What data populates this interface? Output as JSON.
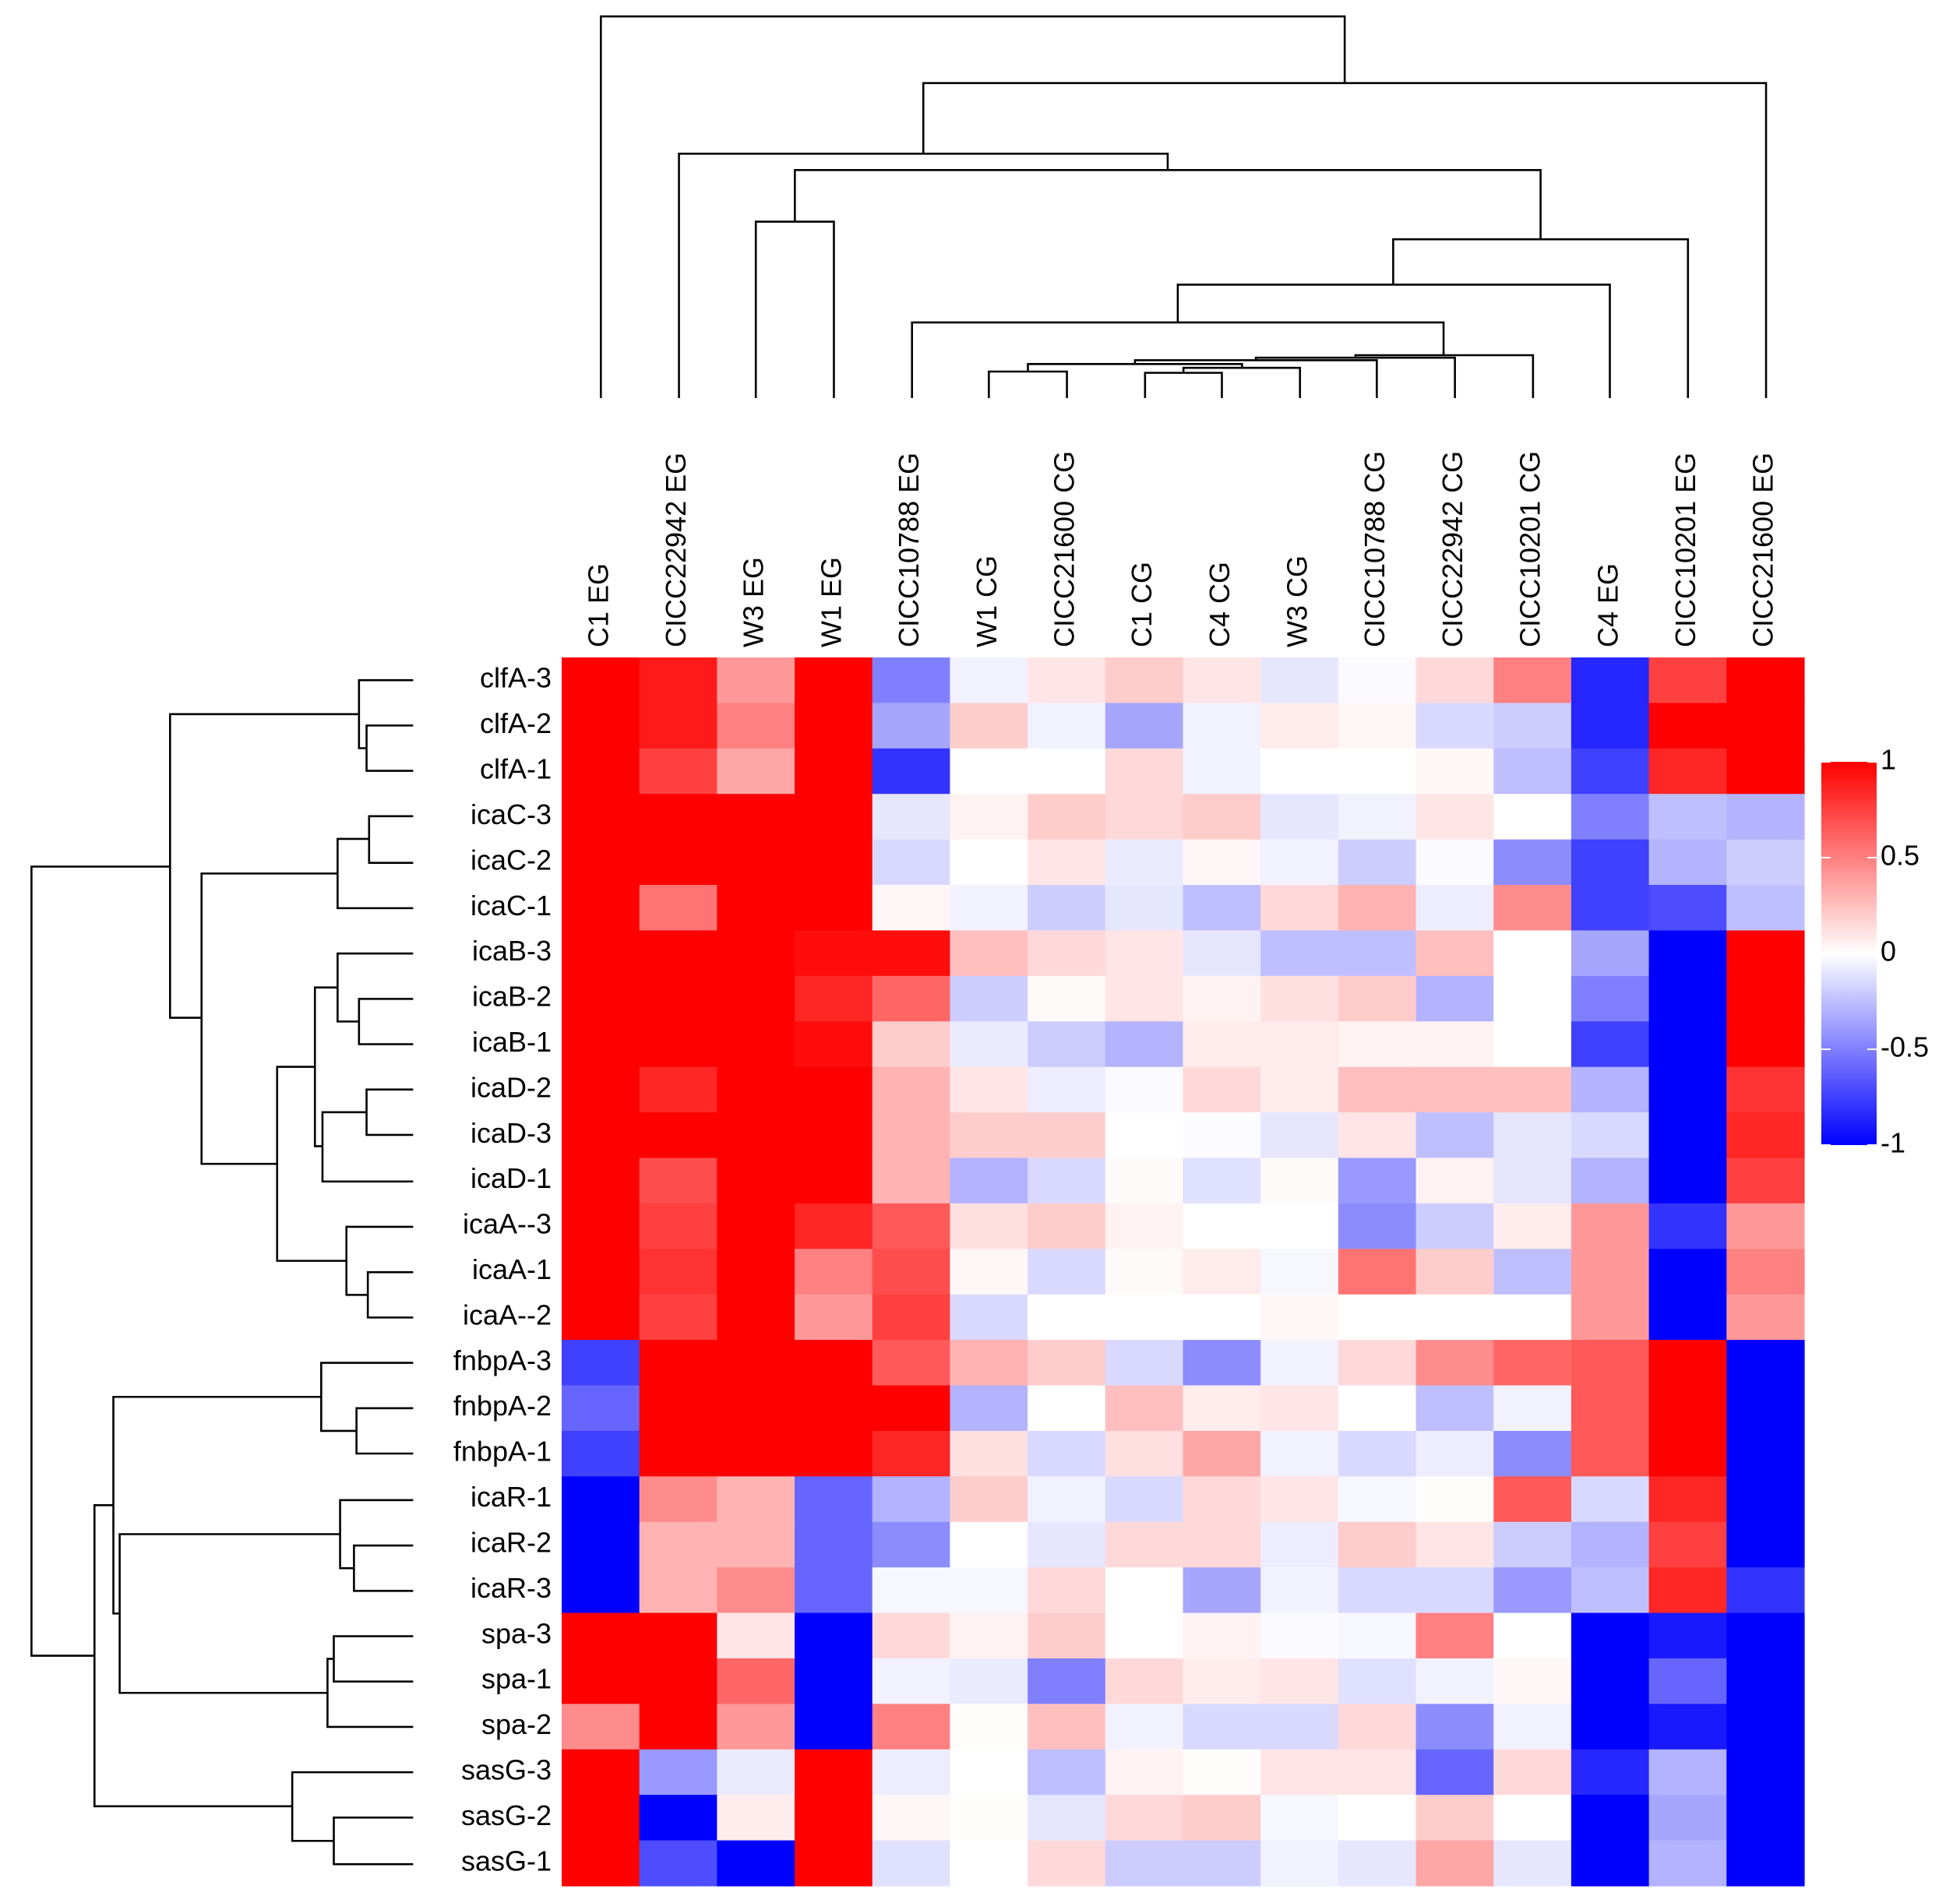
{
  "chart_data": {
    "type": "heatmap",
    "x_categories": [
      "C1 EG",
      "CICC22942 EG",
      "W3 EG",
      "W1 EG",
      "CICC10788 EG",
      "W1 CG",
      "CICC21600 CG",
      "C1 CG",
      "C4 CG",
      "W3 CG",
      "CICC10788 CG",
      "CICC22942 CG",
      "CICC10201 CG",
      "C4 EG",
      "CICC10201 EG",
      "CICC21600 EG"
    ],
    "y_categories": [
      "clfA-3",
      "clfA-2",
      "clfA-1",
      "icaC-3",
      "icaC-2",
      "icaC-1",
      "icaB-3",
      "icaB-2",
      "icaB-1",
      "icaD-2",
      "icaD-3",
      "icaD-1",
      "icaA--3",
      "icaA-1",
      "icaA--2",
      "fnbpA-3",
      "fnbpA-2",
      "fnbpA-1",
      "icaR-1",
      "icaR-2",
      "icaR-3",
      "spa-3",
      "spa-1",
      "spa-2",
      "sasG-3",
      "sasG-2",
      "sasG-1"
    ],
    "values": [
      [
        1,
        0.9,
        0.4,
        1,
        -0.5,
        -0.05,
        0.1,
        0.2,
        0.1,
        -0.1,
        -0.02,
        0.15,
        0.5,
        -0.85,
        0.75,
        1
      ],
      [
        1,
        0.9,
        0.5,
        1,
        -0.35,
        0.2,
        -0.05,
        -0.35,
        -0.05,
        0.07,
        0.03,
        -0.15,
        -0.2,
        -0.85,
        1,
        1
      ],
      [
        1,
        0.75,
        0.35,
        1,
        -0.8,
        0,
        0,
        0.15,
        -0.05,
        0,
        0,
        0.03,
        -0.25,
        -0.75,
        0.85,
        1
      ],
      [
        1,
        1,
        1,
        1,
        -0.1,
        0.05,
        0.2,
        0.15,
        0.2,
        -0.1,
        -0.05,
        0.1,
        0,
        -0.5,
        -0.25,
        -0.3
      ],
      [
        1,
        1,
        1,
        1,
        -0.15,
        0,
        0.1,
        -0.08,
        0.03,
        -0.05,
        -0.2,
        -0.02,
        -0.45,
        -0.75,
        -0.3,
        -0.2
      ],
      [
        1,
        0.55,
        1,
        1,
        0.03,
        -0.05,
        -0.2,
        -0.1,
        -0.25,
        0.15,
        0.3,
        -0.07,
        0.45,
        -0.75,
        -0.7,
        -0.25
      ],
      [
        1,
        1,
        1,
        0.95,
        0.95,
        0.25,
        0.15,
        0.1,
        -0.1,
        -0.25,
        -0.25,
        0.25,
        0,
        -0.35,
        -1,
        1
      ],
      [
        1,
        1,
        1,
        0.85,
        0.6,
        -0.2,
        0.02,
        0.1,
        0.05,
        0.12,
        0.2,
        -0.3,
        0,
        -0.5,
        -1,
        1
      ],
      [
        1,
        1,
        1,
        0.95,
        0.2,
        -0.08,
        -0.2,
        -0.3,
        0.07,
        0.08,
        0.05,
        0.05,
        0,
        -0.75,
        -1,
        1
      ],
      [
        1,
        0.85,
        1,
        1,
        0.3,
        0.1,
        -0.07,
        -0.02,
        0.15,
        0.07,
        0.25,
        0.25,
        0.25,
        -0.3,
        -1,
        0.8
      ],
      [
        1,
        1,
        1,
        1,
        0.3,
        0.2,
        0.2,
        0,
        -0.01,
        -0.1,
        0.1,
        -0.25,
        -0.1,
        -0.15,
        -1,
        0.85
      ],
      [
        1,
        0.7,
        1,
        1,
        0.3,
        -0.3,
        -0.15,
        0.02,
        -0.12,
        0.02,
        -0.4,
        0.05,
        -0.1,
        -0.3,
        -1,
        0.75
      ],
      [
        1,
        0.75,
        1,
        0.85,
        0.65,
        0.12,
        0.2,
        0.05,
        0,
        0,
        -0.45,
        -0.2,
        0.07,
        0.4,
        -0.8,
        0.4
      ],
      [
        1,
        0.8,
        1,
        0.5,
        0.7,
        0.03,
        -0.15,
        0.02,
        0.08,
        -0.03,
        0.55,
        0.2,
        -0.25,
        0.4,
        -1,
        0.5
      ],
      [
        1,
        0.75,
        1,
        0.4,
        0.75,
        -0.15,
        0,
        0,
        0,
        0.03,
        0,
        0,
        0,
        0.4,
        -1,
        0.4
      ],
      [
        -0.75,
        1,
        1,
        1,
        0.65,
        0.3,
        0.2,
        -0.15,
        -0.45,
        -0.05,
        0.15,
        0.45,
        0.6,
        0.65,
        1,
        -1
      ],
      [
        -0.6,
        1,
        1,
        1,
        1,
        -0.3,
        0,
        0.25,
        0.07,
        0.1,
        0,
        -0.25,
        -0.05,
        0.65,
        1,
        -1
      ],
      [
        -0.75,
        1,
        1,
        1,
        0.85,
        0.12,
        -0.15,
        0.12,
        0.35,
        -0.05,
        -0.15,
        -0.07,
        -0.45,
        0.65,
        1,
        -1
      ],
      [
        -1,
        0.45,
        0.3,
        -0.6,
        -0.3,
        0.2,
        -0.05,
        -0.15,
        0.15,
        0.1,
        -0.03,
        0.01,
        0.65,
        -0.15,
        0.85,
        -1
      ],
      [
        -1,
        0.3,
        0.3,
        -0.6,
        -0.45,
        0,
        -0.1,
        0.15,
        0.15,
        -0.07,
        0.2,
        0.1,
        -0.2,
        -0.3,
        0.75,
        -1
      ],
      [
        -1,
        0.3,
        0.45,
        -0.6,
        -0.03,
        -0.03,
        0.15,
        0,
        -0.35,
        -0.05,
        -0.15,
        -0.15,
        -0.4,
        -0.25,
        0.85,
        -0.8
      ],
      [
        1,
        1,
        0.1,
        -1,
        0.15,
        0.05,
        0.2,
        0,
        0.05,
        -0.02,
        -0.03,
        0.5,
        0,
        -1,
        -0.9,
        -1
      ],
      [
        1,
        1,
        0.6,
        -1,
        -0.05,
        -0.08,
        -0.5,
        0.15,
        0.07,
        0.1,
        -0.12,
        -0.05,
        0.03,
        -1,
        -0.6,
        -1
      ],
      [
        0.45,
        1,
        0.4,
        -1,
        0.5,
        0.01,
        0.25,
        -0.05,
        -0.15,
        -0.15,
        0.15,
        -0.45,
        -0.05,
        -1,
        -0.9,
        -1
      ],
      [
        1,
        -0.4,
        -0.08,
        1,
        -0.07,
        0,
        -0.25,
        0.05,
        0.01,
        0.1,
        0.1,
        -0.6,
        0.15,
        -0.85,
        -0.3,
        -1
      ],
      [
        1,
        -1,
        0.07,
        1,
        0.03,
        0.01,
        -0.1,
        0.15,
        0.2,
        -0.03,
        0,
        0.2,
        0,
        -1,
        -0.35,
        -1
      ],
      [
        1,
        -0.7,
        -1,
        1,
        -0.12,
        0,
        0.15,
        -0.2,
        -0.2,
        -0.05,
        -0.1,
        0.35,
        -0.1,
        -1,
        -0.3,
        -1
      ]
    ],
    "colors": [
      "#0000ff",
      "#ffffff",
      "#ff0000"
    ],
    "zlim": [
      -1,
      1
    ],
    "zticks": [
      1,
      0.5,
      0,
      -0.5,
      -1
    ]
  }
}
